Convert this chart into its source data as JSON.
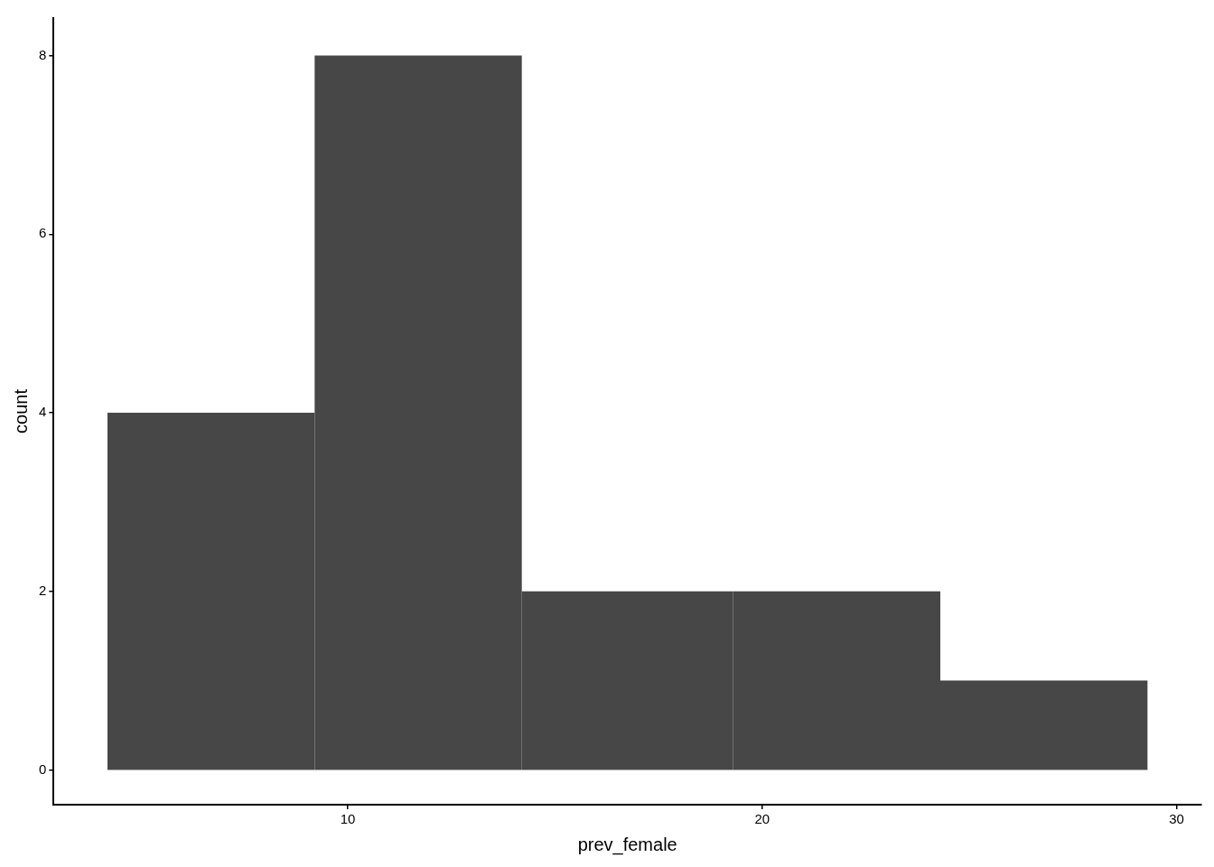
{
  "chart_data": {
    "type": "histogram",
    "xlabel": "prev_female",
    "ylabel": "count",
    "bins": [
      4.2,
      9.2,
      14.2,
      19.3,
      24.3,
      29.3
    ],
    "values": [
      4,
      8,
      2,
      2,
      1
    ],
    "color": "#474747",
    "xlim": [
      2.9,
      30.6
    ],
    "xticks": [
      10,
      20,
      30
    ],
    "ylim": [
      -0.39,
      8.42
    ],
    "yticks": [
      0,
      2,
      4,
      6,
      8
    ],
    "grid": false,
    "legend": false
  }
}
